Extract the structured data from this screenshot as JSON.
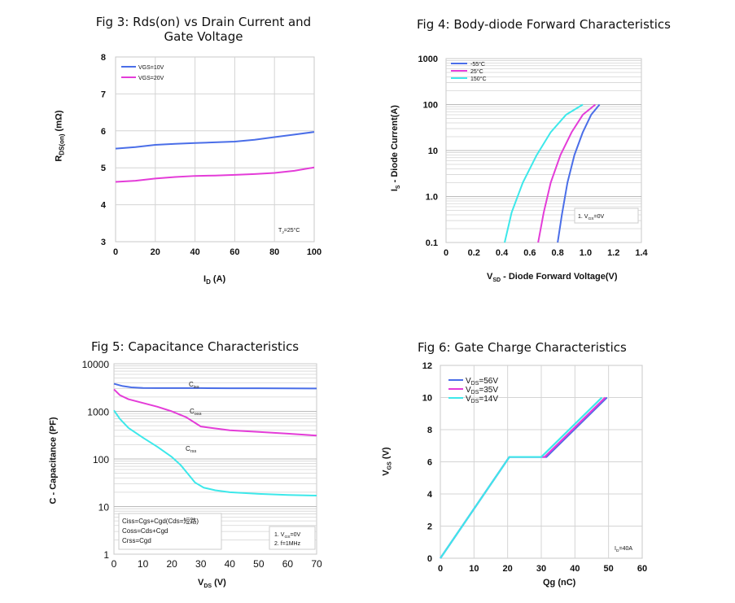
{
  "colors": {
    "blue": "#4a6ee8",
    "magenta": "#e43cd8",
    "cyan": "#3de8ea",
    "orange_red": "#e5553a",
    "grid": "#d4d4d4",
    "minor_grid": "#ececec"
  },
  "chart_data": [
    {
      "id": "fig3",
      "type": "line",
      "title": "Fig 3: Rds(on) vs Drain Current and Gate Voltage",
      "title_lines": [
        "Fig 3: Rds(on) vs Drain Current and",
        "Gate Voltage"
      ],
      "xlabel": "I_D (A)",
      "ylabel": "R_DS(on) (mΩ)",
      "xlim": [
        0,
        100
      ],
      "ylim": [
        3,
        8
      ],
      "xticks": [
        0,
        20,
        40,
        60,
        80,
        100
      ],
      "yticks": [
        3,
        4,
        5,
        6,
        7,
        8
      ],
      "annotation": "T_J=25°C",
      "legend": [
        "VGS=10V",
        "VGS=20V"
      ],
      "series": [
        {
          "name": "VGS=10V",
          "color": "#4a6ee8",
          "x": [
            0,
            10,
            20,
            30,
            40,
            50,
            60,
            70,
            80,
            90,
            100
          ],
          "y": [
            5.52,
            5.56,
            5.62,
            5.65,
            5.67,
            5.69,
            5.71,
            5.76,
            5.83,
            5.9,
            5.97
          ]
        },
        {
          "name": "VGS=20V",
          "color": "#e43cd8",
          "x": [
            0,
            10,
            20,
            30,
            40,
            50,
            60,
            70,
            80,
            90,
            100
          ],
          "y": [
            4.62,
            4.65,
            4.71,
            4.75,
            4.78,
            4.79,
            4.81,
            4.83,
            4.86,
            4.92,
            5.01
          ]
        }
      ]
    },
    {
      "id": "fig4",
      "type": "line",
      "title": "Fig 4: Body-diode Forward  Characteristics",
      "xlabel": "V_SD - Diode Forward Voltage(V)",
      "ylabel": "I_S - Diode Current(A)",
      "xlim": [
        0,
        1.4
      ],
      "ylim": [
        0.1,
        1000
      ],
      "yscale": "log",
      "xticks": [
        "0",
        "0.2",
        "0.4",
        "0.6",
        "0.8",
        "1.0",
        "1.2",
        "1.4"
      ],
      "yticks": [
        "0.1",
        "1.0",
        "10",
        "100",
        "1000"
      ],
      "annotation": "1. V_GS=0V",
      "legend": [
        "-55°C",
        "25°C",
        "150°C"
      ],
      "series": [
        {
          "name": "-55°C",
          "color": "#4a6ee8",
          "x": [
            0.8,
            0.83,
            0.87,
            0.92,
            0.98,
            1.04,
            1.1
          ],
          "y": [
            0.1,
            0.4,
            2,
            8,
            25,
            60,
            100
          ]
        },
        {
          "name": "25°C",
          "color": "#e43cd8",
          "x": [
            0.66,
            0.7,
            0.75,
            0.82,
            0.9,
            0.98,
            1.07
          ],
          "y": [
            0.1,
            0.45,
            2,
            8,
            25,
            60,
            100
          ]
        },
        {
          "name": "150°C",
          "color": "#3de8ea",
          "x": [
            0.42,
            0.47,
            0.55,
            0.65,
            0.75,
            0.86,
            0.98
          ],
          "y": [
            0.1,
            0.45,
            2,
            8,
            25,
            60,
            100
          ]
        }
      ]
    },
    {
      "id": "fig5",
      "type": "line",
      "title": "Fig 5:  Capacitance Characteristics",
      "xlabel": "V_DS (V)",
      "ylabel": "C - Capacitance (PF)",
      "xlim": [
        0,
        70
      ],
      "ylim": [
        1,
        10000
      ],
      "yscale": "log",
      "xticks": [
        0,
        10,
        20,
        30,
        40,
        50,
        60,
        70
      ],
      "yticks": [
        "1",
        "10",
        "100",
        "1000",
        "10000"
      ],
      "curve_labels": [
        "Ciss",
        "Coss",
        "Crss"
      ],
      "formulas": [
        "Ciss=Cgs+Cgd(Cds=短路)",
        "Coss=Cds+Cgd",
        "Crss=Cgd"
      ],
      "notes": [
        "1. V_GS=0V",
        "2. f=1MHz"
      ],
      "series": [
        {
          "name": "Ciss",
          "color": "#4a6ee8",
          "x": [
            0,
            3,
            6,
            10,
            15,
            20,
            30,
            40,
            50,
            60,
            70
          ],
          "y": [
            3800,
            3400,
            3200,
            3100,
            3080,
            3080,
            3080,
            3060,
            3060,
            3040,
            3030
          ]
        },
        {
          "name": "Coss",
          "color": "#e43cd8",
          "x": [
            0,
            2,
            5,
            10,
            15,
            20,
            25,
            30,
            40,
            50,
            60,
            70
          ],
          "y": [
            2900,
            2200,
            1800,
            1500,
            1250,
            1000,
            750,
            480,
            400,
            370,
            340,
            310
          ]
        },
        {
          "name": "Crss",
          "color": "#3de8ea",
          "x": [
            0,
            2,
            5,
            10,
            15,
            20,
            23,
            26,
            28,
            31,
            35,
            40,
            50,
            60,
            70
          ],
          "y": [
            1050,
            700,
            450,
            280,
            180,
            110,
            75,
            45,
            32,
            25,
            22,
            20,
            18.5,
            17.5,
            17
          ]
        }
      ]
    },
    {
      "id": "fig6",
      "type": "line",
      "title": "Fig 6:  Gate Charge Characteristics",
      "xlabel": "Qg (nC)",
      "ylabel": "V_GS (V)",
      "xlim": [
        0,
        60
      ],
      "ylim": [
        0,
        12
      ],
      "xticks": [
        0,
        10,
        20,
        30,
        40,
        50,
        60
      ],
      "yticks": [
        0,
        2,
        4,
        6,
        8,
        10,
        12
      ],
      "annotation": "I_D=40A",
      "legend": [
        "V_DS=56V",
        "V_DS=35V",
        "V_DS=14V"
      ],
      "series": [
        {
          "name": "V_DS=56V",
          "color": "#4a6ee8",
          "x": [
            0,
            20.5,
            31.5,
            49.5
          ],
          "y": [
            0,
            6.3,
            6.3,
            10
          ]
        },
        {
          "name": "V_DS=35V",
          "color": "#e43cd8",
          "x": [
            0,
            20.5,
            31,
            49
          ],
          "y": [
            0,
            6.3,
            6.3,
            10
          ]
        },
        {
          "name": "V_DS=14V",
          "color": "#3de8ea",
          "x": [
            0,
            20.5,
            30,
            48
          ],
          "y": [
            0,
            6.3,
            6.3,
            10
          ]
        }
      ]
    }
  ],
  "labels": {
    "fig3_title_1": "Fig 3: Rds(on) vs Drain Current and",
    "fig3_title_2": "Gate Voltage",
    "fig4_title": "Fig 4: Body-diode Forward  Characteristics",
    "fig5_title": "Fig 5:  Capacitance Characteristics",
    "fig6_title": "Fig 6:  Gate Charge Characteristics"
  }
}
